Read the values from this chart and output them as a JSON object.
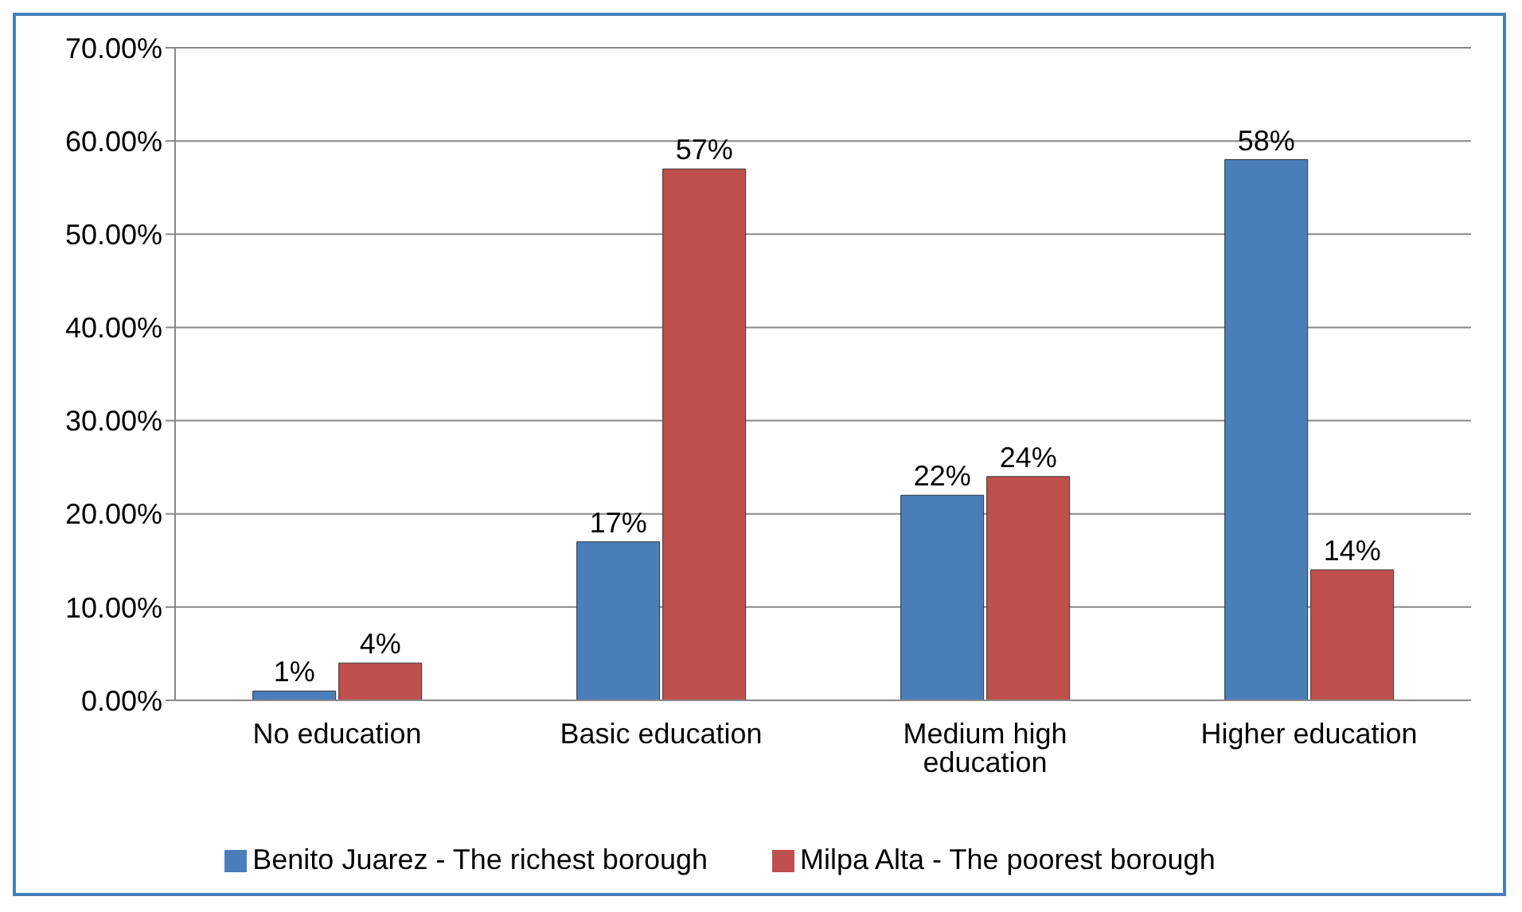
{
  "chart_data": {
    "type": "bar",
    "categories": [
      "No education",
      "Basic education",
      "Medium high education",
      "Higher education"
    ],
    "series": [
      {
        "name": "Benito Juarez - The richest borough",
        "color": "#4a7ebb",
        "values": [
          1,
          17,
          22,
          58
        ],
        "value_labels": [
          "1%",
          "17%",
          "22%",
          "58%"
        ]
      },
      {
        "name": "Milpa Alta - The poorest borough",
        "color": "#c0504d",
        "values": [
          4,
          57,
          24,
          14
        ],
        "value_labels": [
          "4%",
          "57%",
          "24%",
          "14%"
        ]
      }
    ],
    "ylim": [
      0,
      70
    ],
    "yticks": [
      {
        "value": 0,
        "label": "0.00%"
      },
      {
        "value": 10,
        "label": "10.00%"
      },
      {
        "value": 20,
        "label": "20.00%"
      },
      {
        "value": 30,
        "label": "30.00%"
      },
      {
        "value": 40,
        "label": "40.00%"
      },
      {
        "value": 50,
        "label": "50.00%"
      },
      {
        "value": 60,
        "label": "60.00%"
      },
      {
        "value": 70,
        "label": "70.00%"
      }
    ],
    "grid": "y",
    "legend": "bottom"
  }
}
